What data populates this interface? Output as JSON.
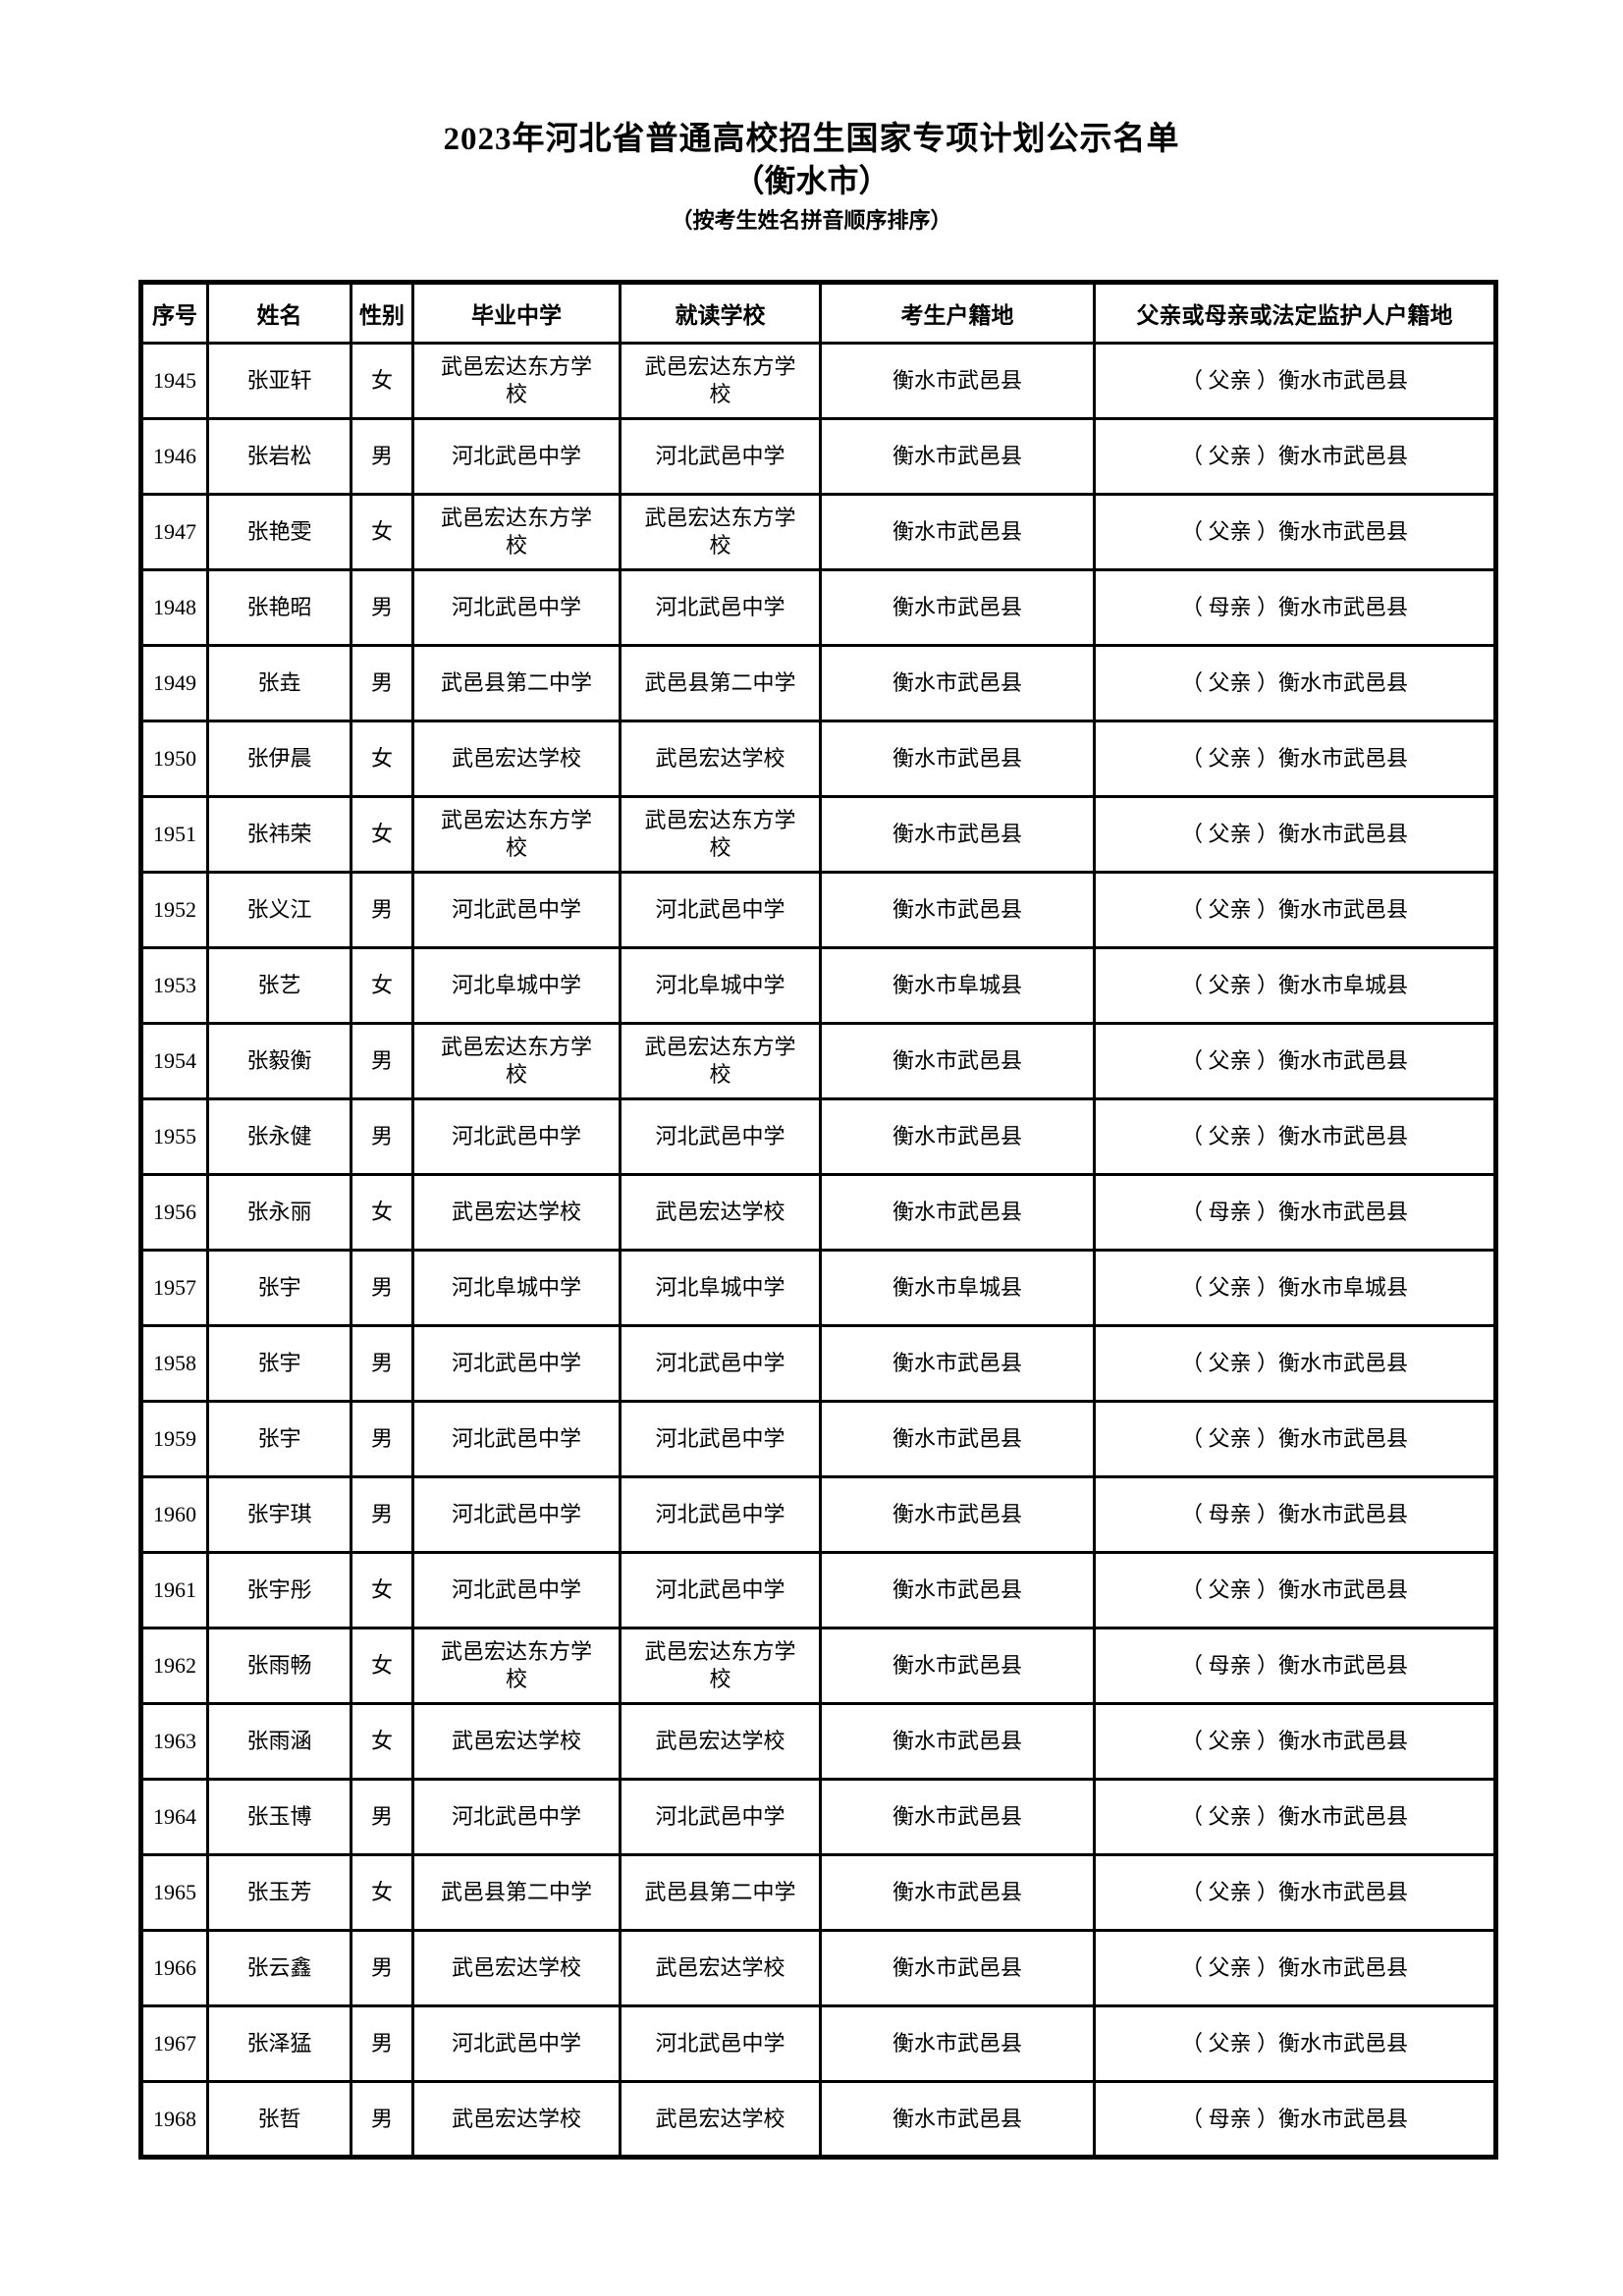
{
  "page": {
    "title": "2023年河北省普通高校招生国家专项计划公示名单",
    "subtitle": "（衡水市）",
    "sort_note": "（按考生姓名拼音顺序排序）"
  },
  "table": {
    "columns": [
      "序号",
      "姓名",
      "性别",
      "毕业中学",
      "就读学校",
      "考生户籍地",
      "父亲或母亲或法定监护人户籍地"
    ],
    "rows": [
      [
        "1945",
        "张亚轩",
        "女",
        "武邑宏达东方学校",
        "武邑宏达东方学校",
        "衡水市武邑县",
        "（ 父亲 ）衡水市武邑县"
      ],
      [
        "1946",
        "张岩松",
        "男",
        "河北武邑中学",
        "河北武邑中学",
        "衡水市武邑县",
        "（ 父亲 ）衡水市武邑县"
      ],
      [
        "1947",
        "张艳雯",
        "女",
        "武邑宏达东方学校",
        "武邑宏达东方学校",
        "衡水市武邑县",
        "（ 父亲 ）衡水市武邑县"
      ],
      [
        "1948",
        "张艳昭",
        "男",
        "河北武邑中学",
        "河北武邑中学",
        "衡水市武邑县",
        "（ 母亲 ）衡水市武邑县"
      ],
      [
        "1949",
        "张垚",
        "男",
        "武邑县第二中学",
        "武邑县第二中学",
        "衡水市武邑县",
        "（ 父亲 ）衡水市武邑县"
      ],
      [
        "1950",
        "张伊晨",
        "女",
        "武邑宏达学校",
        "武邑宏达学校",
        "衡水市武邑县",
        "（ 父亲 ）衡水市武邑县"
      ],
      [
        "1951",
        "张祎荣",
        "女",
        "武邑宏达东方学校",
        "武邑宏达东方学校",
        "衡水市武邑县",
        "（ 父亲 ）衡水市武邑县"
      ],
      [
        "1952",
        "张义江",
        "男",
        "河北武邑中学",
        "河北武邑中学",
        "衡水市武邑县",
        "（ 父亲 ）衡水市武邑县"
      ],
      [
        "1953",
        "张艺",
        "女",
        "河北阜城中学",
        "河北阜城中学",
        "衡水市阜城县",
        "（ 父亲 ）衡水市阜城县"
      ],
      [
        "1954",
        "张毅衡",
        "男",
        "武邑宏达东方学校",
        "武邑宏达东方学校",
        "衡水市武邑县",
        "（ 父亲 ）衡水市武邑县"
      ],
      [
        "1955",
        "张永健",
        "男",
        "河北武邑中学",
        "河北武邑中学",
        "衡水市武邑县",
        "（ 父亲 ）衡水市武邑县"
      ],
      [
        "1956",
        "张永丽",
        "女",
        "武邑宏达学校",
        "武邑宏达学校",
        "衡水市武邑县",
        "（ 母亲 ）衡水市武邑县"
      ],
      [
        "1957",
        "张宇",
        "男",
        "河北阜城中学",
        "河北阜城中学",
        "衡水市阜城县",
        "（ 父亲 ）衡水市阜城县"
      ],
      [
        "1958",
        "张宇",
        "男",
        "河北武邑中学",
        "河北武邑中学",
        "衡水市武邑县",
        "（ 父亲 ）衡水市武邑县"
      ],
      [
        "1959",
        "张宇",
        "男",
        "河北武邑中学",
        "河北武邑中学",
        "衡水市武邑县",
        "（ 父亲 ）衡水市武邑县"
      ],
      [
        "1960",
        "张宇琪",
        "男",
        "河北武邑中学",
        "河北武邑中学",
        "衡水市武邑县",
        "（ 母亲 ）衡水市武邑县"
      ],
      [
        "1961",
        "张宇彤",
        "女",
        "河北武邑中学",
        "河北武邑中学",
        "衡水市武邑县",
        "（ 父亲 ）衡水市武邑县"
      ],
      [
        "1962",
        "张雨畅",
        "女",
        "武邑宏达东方学校",
        "武邑宏达东方学校",
        "衡水市武邑县",
        "（ 母亲 ）衡水市武邑县"
      ],
      [
        "1963",
        "张雨涵",
        "女",
        "武邑宏达学校",
        "武邑宏达学校",
        "衡水市武邑县",
        "（ 父亲 ）衡水市武邑县"
      ],
      [
        "1964",
        "张玉博",
        "男",
        "河北武邑中学",
        "河北武邑中学",
        "衡水市武邑县",
        "（ 父亲 ）衡水市武邑县"
      ],
      [
        "1965",
        "张玉芳",
        "女",
        "武邑县第二中学",
        "武邑县第二中学",
        "衡水市武邑县",
        "（ 父亲 ）衡水市武邑县"
      ],
      [
        "1966",
        "张云鑫",
        "男",
        "武邑宏达学校",
        "武邑宏达学校",
        "衡水市武邑县",
        "（ 父亲 ）衡水市武邑县"
      ],
      [
        "1967",
        "张泽猛",
        "男",
        "河北武邑中学",
        "河北武邑中学",
        "衡水市武邑县",
        "（ 父亲 ）衡水市武邑县"
      ],
      [
        "1968",
        "张哲",
        "男",
        "武邑宏达学校",
        "武邑宏达学校",
        "衡水市武邑县",
        "（ 母亲 ）衡水市武邑县"
      ]
    ]
  }
}
